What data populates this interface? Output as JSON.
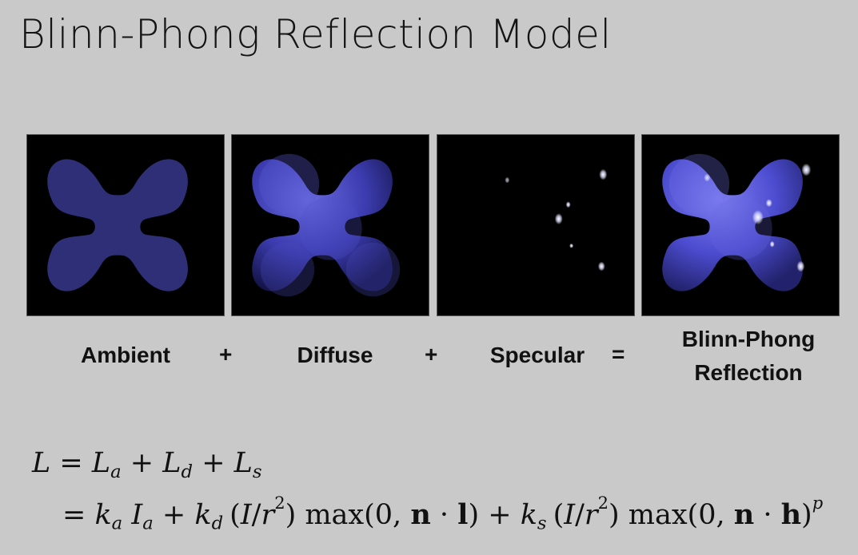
{
  "title": "Blinn-Phong Reflection Model",
  "panels": [
    {
      "label": "Ambient"
    },
    {
      "label": "Diffuse"
    },
    {
      "label": "Specular"
    },
    {
      "label_line1": "Blinn-Phong",
      "label_line2": "Reflection"
    }
  ],
  "operators": {
    "plus1": "+",
    "plus2": "+",
    "equals": "="
  },
  "colors": {
    "background": "#c9c9c9",
    "ambient": "#2f2f78",
    "diffuse": "#4848c8",
    "panel_bg": "#000000"
  }
}
